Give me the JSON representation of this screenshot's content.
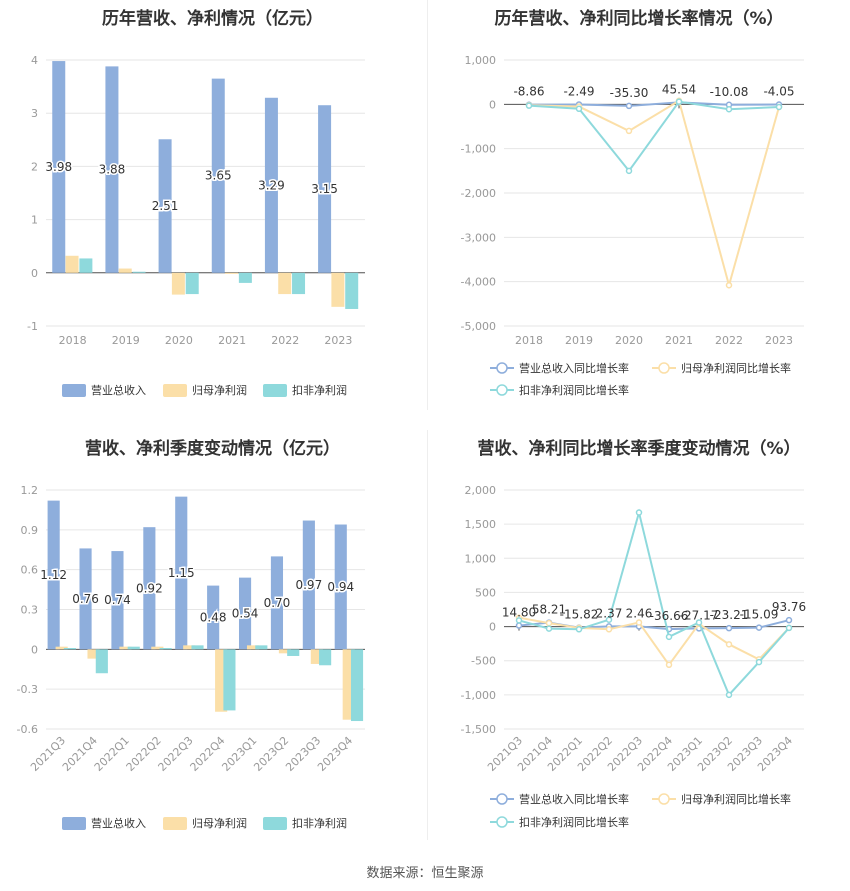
{
  "source": "数据来源：恒生聚源",
  "colors": {
    "revenue": "#8eaedc",
    "net_profit": "#fbdfa8",
    "deducted_profit": "#8ed9dc",
    "grid": "#e6e6e6",
    "axis_text": "#999999"
  },
  "chart_data": [
    {
      "type": "bar",
      "title": "历年营收、净利情况（亿元）",
      "categories": [
        "2018",
        "2019",
        "2020",
        "2021",
        "2022",
        "2023"
      ],
      "ylim": [
        -1,
        4
      ],
      "yticks": [
        -1,
        0,
        1,
        2,
        3,
        4
      ],
      "ytick_labels": [
        "-1",
        "0",
        "1",
        "2",
        "3",
        "4"
      ],
      "series": [
        {
          "name": "营业总收入",
          "values": [
            3.98,
            3.88,
            2.51,
            3.65,
            3.29,
            3.15
          ],
          "labels": [
            "3.98",
            "3.88",
            "2.51",
            "3.65",
            "3.29",
            "3.15"
          ]
        },
        {
          "name": "归母净利润",
          "values": [
            0.32,
            0.08,
            -0.41,
            -0.02,
            -0.4,
            -0.64
          ]
        },
        {
          "name": "扣非净利润",
          "values": [
            0.27,
            0.02,
            -0.4,
            -0.19,
            -0.4,
            -0.68
          ]
        }
      ],
      "legend": "bottom"
    },
    {
      "type": "line",
      "title": "历年营收、净利同比增长率情况（%）",
      "categories": [
        "2018",
        "2019",
        "2020",
        "2021",
        "2022",
        "2023"
      ],
      "ylim": [
        -5000,
        1000
      ],
      "yticks": [
        -5000,
        -4000,
        -3000,
        -2000,
        -1000,
        0,
        1000
      ],
      "ytick_labels": [
        "-5,000",
        "-4,000",
        "-3,000",
        "-2,000",
        "-1,000",
        "0",
        "1,000"
      ],
      "series": [
        {
          "name": "营业总收入同比增长率",
          "values": [
            -8.86,
            -2.49,
            -35.3,
            45.54,
            -10.08,
            -4.05
          ],
          "labels": [
            "-8.86",
            "-2.49",
            "-35.30",
            "45.54",
            "-10.08",
            "-4.05"
          ]
        },
        {
          "name": "归母净利润同比增长率",
          "values": [
            -20,
            -50,
            -600,
            80,
            -4080,
            -60
          ]
        },
        {
          "name": "扣非净利润同比增长率",
          "values": [
            -30,
            -100,
            -1500,
            60,
            -110,
            -60
          ]
        }
      ],
      "legend": "bottom"
    },
    {
      "type": "bar",
      "title": "营收、净利季度变动情况（亿元）",
      "categories": [
        "2021Q3",
        "2021Q4",
        "2022Q1",
        "2022Q2",
        "2022Q3",
        "2022Q4",
        "2023Q1",
        "2023Q2",
        "2023Q3",
        "2023Q4"
      ],
      "ylim": [
        -0.6,
        1.2
      ],
      "yticks": [
        -0.6,
        -0.3,
        0,
        0.3,
        0.6,
        0.9,
        1.2
      ],
      "ytick_labels": [
        "-0.6",
        "-0.3",
        "0",
        "0.3",
        "0.6",
        "0.9",
        "1.2"
      ],
      "series": [
        {
          "name": "营业总收入",
          "values": [
            1.12,
            0.76,
            0.74,
            0.92,
            1.15,
            0.48,
            0.54,
            0.7,
            0.97,
            0.94
          ],
          "labels": [
            "1.12",
            "0.76",
            "0.74",
            "0.92",
            "1.15",
            "0.48",
            "0.54",
            "0.70",
            "0.97",
            "0.94"
          ]
        },
        {
          "name": "归母净利润",
          "values": [
            0.02,
            -0.07,
            0.02,
            0.02,
            0.03,
            -0.47,
            0.03,
            -0.03,
            -0.11,
            -0.53
          ]
        },
        {
          "name": "扣非净利润",
          "values": [
            0.01,
            -0.18,
            0.02,
            0.01,
            0.03,
            -0.46,
            0.03,
            -0.05,
            -0.12,
            -0.54
          ]
        }
      ],
      "legend": "bottom"
    },
    {
      "type": "line",
      "title": "营收、净利同比增长率季度变动情况（%）",
      "categories": [
        "2021Q3",
        "2021Q4",
        "2022Q1",
        "2022Q2",
        "2022Q3",
        "2022Q4",
        "2023Q1",
        "2023Q2",
        "2023Q3",
        "2023Q4"
      ],
      "ylim": [
        -1500,
        2000
      ],
      "yticks": [
        -1500,
        -1000,
        -500,
        0,
        500,
        1000,
        1500,
        2000
      ],
      "ytick_labels": [
        "-1,500",
        "-1,000",
        "-500",
        "0",
        "500",
        "1,000",
        "1,500",
        "2,000"
      ],
      "series": [
        {
          "name": "营业总收入同比增长率",
          "values": [
            14.8,
            58.21,
            -15.82,
            2.37,
            2.46,
            -36.66,
            -27.17,
            -23.21,
            -15.09,
            93.76
          ],
          "labels": [
            "14.80",
            "58.21",
            "-15.82",
            "2.37",
            "2.46",
            "-36.66",
            "-27.17",
            "-23.21",
            "-15.09",
            "93.76"
          ]
        },
        {
          "name": "归母净利润同比增长率",
          "values": [
            130,
            50,
            -20,
            -40,
            60,
            -560,
            40,
            -260,
            -480,
            -20
          ]
        },
        {
          "name": "扣非净利润同比增长率",
          "values": [
            90,
            -30,
            -40,
            100,
            1670,
            -150,
            60,
            -1000,
            -520,
            -20
          ]
        }
      ],
      "legend": "bottom"
    }
  ]
}
